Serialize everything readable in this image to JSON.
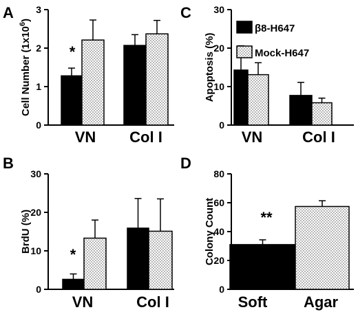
{
  "colors": {
    "series1": "#000000",
    "series2_dots": "#555555",
    "series2_bg": "#ffffff"
  },
  "legend": {
    "items": [
      "β8-H647",
      "Mock-H647"
    ]
  },
  "chart_data": [
    {
      "panel": "A",
      "type": "bar",
      "ylabel": "Cell Number (1x10",
      "ylabel_sup": "6",
      "ylabel_end": ")",
      "ylim": [
        0,
        3
      ],
      "yticks": [
        "0",
        "1",
        "2",
        "3"
      ],
      "categories": [
        "VN",
        "Col I"
      ],
      "series": [
        {
          "values": [
            1.28,
            2.07
          ],
          "errors": [
            0.2,
            0.28
          ]
        },
        {
          "values": [
            2.21,
            2.37
          ],
          "errors": [
            0.52,
            0.35
          ]
        }
      ],
      "annotations": [
        {
          "text": "*",
          "category": 0
        }
      ]
    },
    {
      "panel": "B",
      "type": "bar",
      "ylabel": "BrdU (%)",
      "ylim": [
        0,
        30
      ],
      "yticks": [
        "0",
        "10",
        "20",
        "30"
      ],
      "categories": [
        "VN",
        "Col I"
      ],
      "series": [
        {
          "values": [
            2.6,
            15.9
          ],
          "errors": [
            1.4,
            7.7
          ]
        },
        {
          "values": [
            13.3,
            15.1
          ],
          "errors": [
            4.7,
            8.4
          ]
        }
      ],
      "annotations": [
        {
          "text": "*",
          "category": 0
        }
      ]
    },
    {
      "panel": "C",
      "type": "bar",
      "ylabel": "Apoptosis (%)",
      "ylim": [
        0,
        30
      ],
      "yticks": [
        "0",
        "10",
        "20",
        "30"
      ],
      "categories": [
        "VN",
        "Col I"
      ],
      "series": [
        {
          "name": "β8-H647",
          "values": [
            14.3,
            7.7
          ],
          "errors": [
            6.3,
            3.4
          ]
        },
        {
          "name": "Mock-H647",
          "values": [
            13.1,
            5.8
          ],
          "errors": [
            3.1,
            1.2
          ]
        }
      ],
      "legend_position": "top-right"
    },
    {
      "panel": "D",
      "type": "bar",
      "ylabel": "Colony  Count",
      "ylim": [
        0,
        80
      ],
      "yticks": [
        "0",
        "20",
        "40",
        "60",
        "80"
      ],
      "categories": [
        "Soft",
        "Agar"
      ],
      "series": [
        {
          "values": [
            31.0,
            null
          ],
          "errors": [
            3.3,
            null
          ]
        },
        {
          "values": [
            null,
            57.4
          ],
          "errors": [
            null,
            4.0
          ]
        }
      ],
      "annotations": [
        {
          "text": "**",
          "category": 0
        }
      ]
    }
  ]
}
